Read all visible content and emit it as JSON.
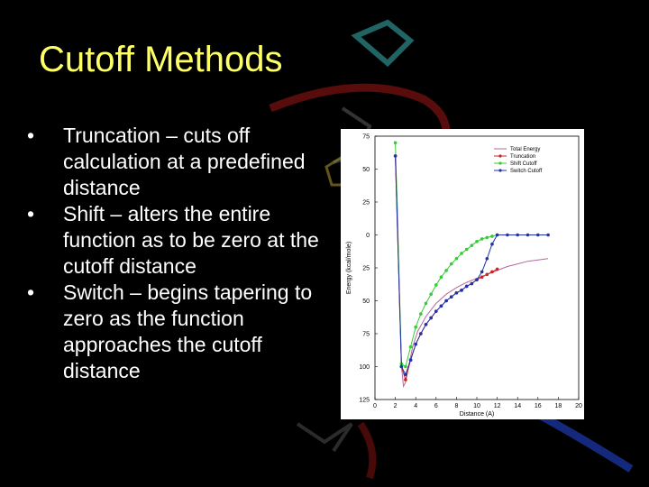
{
  "slide": {
    "title": "Cutoff Methods",
    "title_color": "#ffff66",
    "bullet_marker": "•",
    "bullets": [
      "Truncation – cuts off calculation at a predefined distance",
      "Shift – alters the entire function as to be zero at the cutoff distance",
      "Switch – begins tapering to zero as the function approaches the cutoff distance"
    ]
  },
  "chart_data": {
    "type": "line",
    "xlabel": "Distance (A)",
    "ylabel": "Energy (kcal/mole)",
    "xlim": [
      0,
      20
    ],
    "ylim": [
      -125,
      75
    ],
    "x_ticks": [
      0,
      2,
      4,
      6,
      8,
      10,
      12,
      14,
      16,
      18,
      20
    ],
    "y_ticks": [
      75,
      50,
      25,
      0,
      -25,
      -50,
      -75,
      -100,
      -125
    ],
    "y_tick_labels": [
      "75",
      "50",
      "25",
      "0",
      "25",
      "50",
      "75",
      "100",
      "125"
    ],
    "legend_position": "top-right",
    "series": [
      {
        "name": "Total Energy",
        "color": "#b36b9a",
        "marker": "none",
        "points": [
          [
            2.0,
            60
          ],
          [
            2.2,
            20
          ],
          [
            2.4,
            -50
          ],
          [
            2.6,
            -100
          ],
          [
            2.8,
            -115
          ],
          [
            3.0,
            -112
          ],
          [
            3.3,
            -100
          ],
          [
            3.7,
            -85
          ],
          [
            4.2,
            -73
          ],
          [
            5,
            -62
          ],
          [
            6,
            -52
          ],
          [
            7,
            -45
          ],
          [
            8,
            -40
          ],
          [
            9,
            -36
          ],
          [
            10,
            -33
          ],
          [
            11,
            -30
          ],
          [
            12,
            -27
          ],
          [
            13,
            -24
          ],
          [
            14,
            -22
          ],
          [
            15,
            -20
          ],
          [
            16,
            -19
          ],
          [
            17,
            -18
          ]
        ]
      },
      {
        "name": "Truncation",
        "color": "#cc2222",
        "marker": "circle",
        "points": [
          [
            2.0,
            60
          ],
          [
            2.6,
            -100
          ],
          [
            3.0,
            -110
          ],
          [
            3.5,
            -95
          ],
          [
            4,
            -83
          ],
          [
            4.5,
            -75
          ],
          [
            5,
            -68
          ],
          [
            5.5,
            -63
          ],
          [
            6,
            -58
          ],
          [
            6.5,
            -54
          ],
          [
            7,
            -50
          ],
          [
            7.5,
            -47
          ],
          [
            8,
            -44
          ],
          [
            8.5,
            -42
          ],
          [
            9,
            -39
          ],
          [
            9.5,
            -37
          ],
          [
            10,
            -34
          ],
          [
            10.5,
            -32
          ],
          [
            11,
            -30
          ],
          [
            11.5,
            -28
          ],
          [
            12,
            -26
          ]
        ]
      },
      {
        "name": "Shift Cutoff",
        "color": "#33cc33",
        "marker": "circle",
        "points": [
          [
            2.0,
            70
          ],
          [
            2.6,
            -98
          ],
          [
            3.0,
            -100
          ],
          [
            3.5,
            -85
          ],
          [
            4,
            -70
          ],
          [
            4.5,
            -60
          ],
          [
            5,
            -52
          ],
          [
            5.5,
            -45
          ],
          [
            6,
            -38
          ],
          [
            6.5,
            -32
          ],
          [
            7,
            -27
          ],
          [
            7.5,
            -22
          ],
          [
            8,
            -18
          ],
          [
            8.5,
            -14
          ],
          [
            9,
            -11
          ],
          [
            9.5,
            -8
          ],
          [
            10,
            -5
          ],
          [
            10.5,
            -3
          ],
          [
            11,
            -2
          ],
          [
            11.5,
            -1
          ],
          [
            12,
            0
          ]
        ]
      },
      {
        "name": "Switch Cutoff",
        "color": "#2233aa",
        "marker": "circle",
        "points": [
          [
            2.0,
            60
          ],
          [
            2.6,
            -100
          ],
          [
            3.0,
            -106
          ],
          [
            3.5,
            -95
          ],
          [
            4,
            -83
          ],
          [
            4.5,
            -75
          ],
          [
            5,
            -68
          ],
          [
            5.5,
            -63
          ],
          [
            6,
            -58
          ],
          [
            6.5,
            -54
          ],
          [
            7,
            -50
          ],
          [
            7.5,
            -47
          ],
          [
            8,
            -44
          ],
          [
            8.5,
            -42
          ],
          [
            9,
            -39
          ],
          [
            9.5,
            -37
          ],
          [
            10,
            -34
          ],
          [
            10.5,
            -28
          ],
          [
            11,
            -18
          ],
          [
            11.5,
            -7
          ],
          [
            12,
            0
          ],
          [
            13,
            0
          ],
          [
            14,
            0
          ],
          [
            15,
            0
          ],
          [
            16,
            0
          ],
          [
            17,
            0
          ]
        ]
      }
    ]
  }
}
